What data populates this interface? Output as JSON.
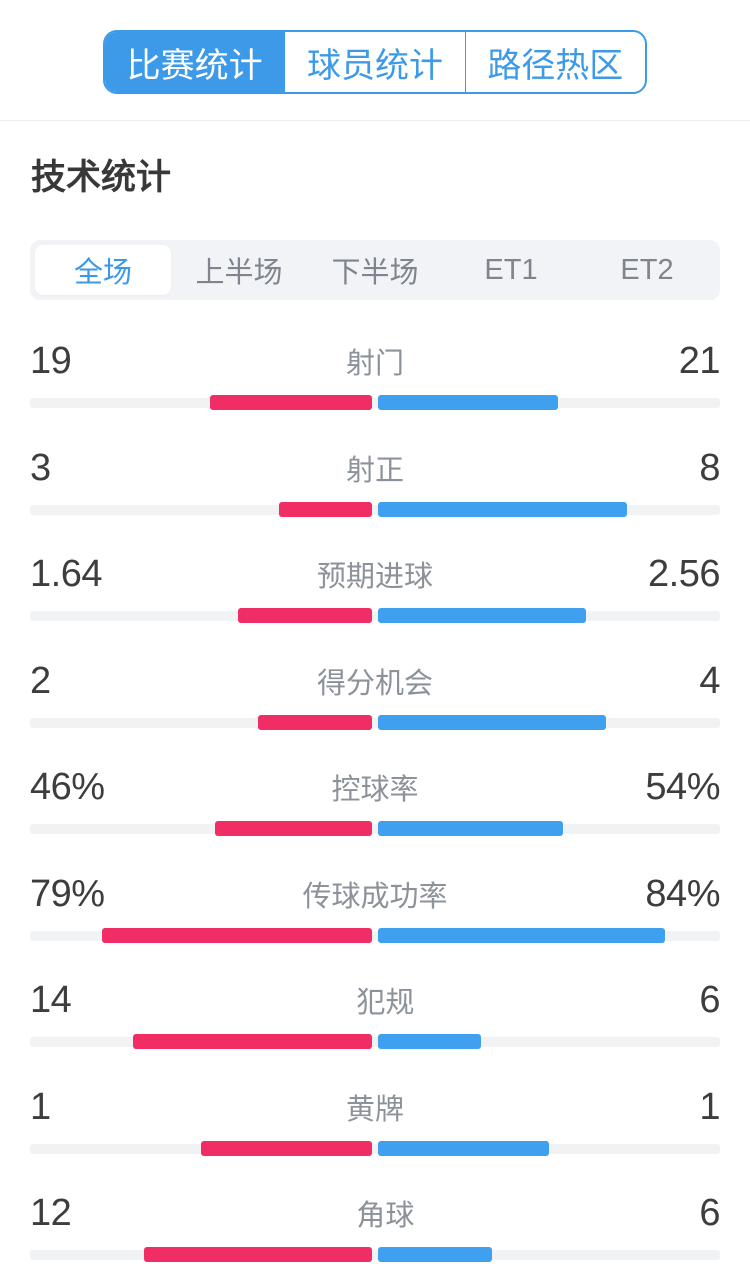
{
  "colors": {
    "accent_blue": "#3D9AE8",
    "home_bar_pink": "#F02D64",
    "away_bar_blue": "#40A0F0",
    "track_gray": "#F1F2F4",
    "period_bar_bg": "#F2F3F6"
  },
  "top_tabs": [
    {
      "label": "比赛统计",
      "active": true
    },
    {
      "label": "球员统计",
      "active": false
    },
    {
      "label": "路径热区",
      "active": false
    }
  ],
  "page_title": "技术统计",
  "period_tabs": [
    {
      "label": "全场",
      "active": true
    },
    {
      "label": "上半场",
      "active": false
    },
    {
      "label": "下半场",
      "active": false
    },
    {
      "label": "ET1",
      "active": false
    },
    {
      "label": "ET2",
      "active": false
    }
  ],
  "chart_data": {
    "type": "bar",
    "note": "mirrored center-out bars; home=left(pink), away=right(blue); width fraction = value/100 for percent rows, value/(home+away) otherwise",
    "stats": [
      {
        "label": "射门",
        "mode": "share",
        "home": {
          "value": 19,
          "display": "19"
        },
        "away": {
          "value": 21,
          "display": "21"
        }
      },
      {
        "label": "射正",
        "mode": "share",
        "home": {
          "value": 3,
          "display": "3"
        },
        "away": {
          "value": 8,
          "display": "8"
        }
      },
      {
        "label": "预期进球",
        "mode": "share",
        "home": {
          "value": 1.64,
          "display": "1.64"
        },
        "away": {
          "value": 2.56,
          "display": "2.56"
        }
      },
      {
        "label": "得分机会",
        "mode": "share",
        "home": {
          "value": 2,
          "display": "2"
        },
        "away": {
          "value": 4,
          "display": "4"
        }
      },
      {
        "label": "控球率",
        "mode": "percent",
        "home": {
          "value": 46,
          "display": "46%"
        },
        "away": {
          "value": 54,
          "display": "54%"
        }
      },
      {
        "label": "传球成功率",
        "mode": "percent",
        "home": {
          "value": 79,
          "display": "79%"
        },
        "away": {
          "value": 84,
          "display": "84%"
        }
      },
      {
        "label": "犯规",
        "mode": "share",
        "home": {
          "value": 14,
          "display": "14"
        },
        "away": {
          "value": 6,
          "display": "6"
        }
      },
      {
        "label": "黄牌",
        "mode": "share",
        "home": {
          "value": 1,
          "display": "1"
        },
        "away": {
          "value": 1,
          "display": "1"
        }
      },
      {
        "label": "角球",
        "mode": "share",
        "home": {
          "value": 12,
          "display": "12"
        },
        "away": {
          "value": 6,
          "display": "6"
        }
      }
    ]
  }
}
